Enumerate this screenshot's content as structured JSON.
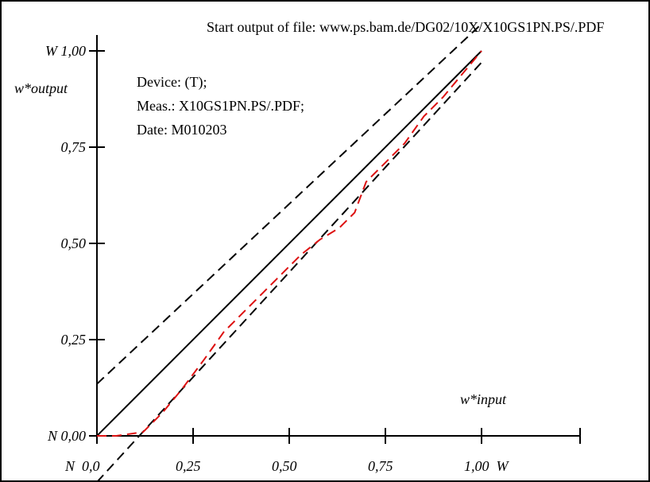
{
  "chart_data": {
    "type": "line",
    "title": "Start output of file: www.ps.bam.de/DG02/10X/X10GS1PN.PS/.PDF",
    "info": {
      "device": "Device: (T);",
      "meas": "Meas.: X10GS1PN.PS/.PDF;",
      "date": "Date: M010203"
    },
    "xlabel": "w*input",
    "ylabel": "w*output",
    "x_ticks": [
      {
        "value": 0,
        "label": "N  0,0"
      },
      {
        "value": 0.25,
        "label": "0,25"
      },
      {
        "value": 0.5,
        "label": "0,50"
      },
      {
        "value": 0.75,
        "label": "0,75"
      },
      {
        "value": 1.0,
        "label": "1,00  W"
      }
    ],
    "y_ticks": [
      {
        "value": 0,
        "label": "N 0,00"
      },
      {
        "value": 0.25,
        "label": "0,25"
      },
      {
        "value": 0.5,
        "label": "0,50"
      },
      {
        "value": 0.75,
        "label": "0,75"
      },
      {
        "value": 1.0,
        "label": "W 1,00"
      }
    ],
    "xlim": [
      0,
      1.25
    ],
    "ylim": [
      0,
      1.0
    ],
    "grid": false,
    "series": [
      {
        "style": "solid",
        "color": "#000000",
        "x": [
          0,
          1.0
        ],
        "y": [
          0,
          1.0
        ]
      },
      {
        "style": "dashed",
        "color": "#000000",
        "x": [
          0,
          1.0
        ],
        "y": [
          0.135,
          1.07
        ]
      },
      {
        "style": "dashed",
        "color": "#000000",
        "x": [
          0,
          1.0
        ],
        "y": [
          -0.12,
          0.97
        ]
      },
      {
        "style": "dashed",
        "color": "#dd1111",
        "x": [
          0,
          0.05,
          0.12,
          0.17,
          0.22,
          0.28,
          0.33,
          0.38,
          0.43,
          0.48,
          0.53,
          0.58,
          0.63,
          0.67,
          0.7,
          0.75,
          0.8,
          0.85,
          0.9,
          0.95,
          1.0
        ],
        "y": [
          0,
          0.0,
          0.01,
          0.06,
          0.12,
          0.2,
          0.27,
          0.32,
          0.37,
          0.42,
          0.47,
          0.51,
          0.54,
          0.58,
          0.66,
          0.71,
          0.76,
          0.83,
          0.88,
          0.94,
          1.0
        ]
      }
    ]
  }
}
